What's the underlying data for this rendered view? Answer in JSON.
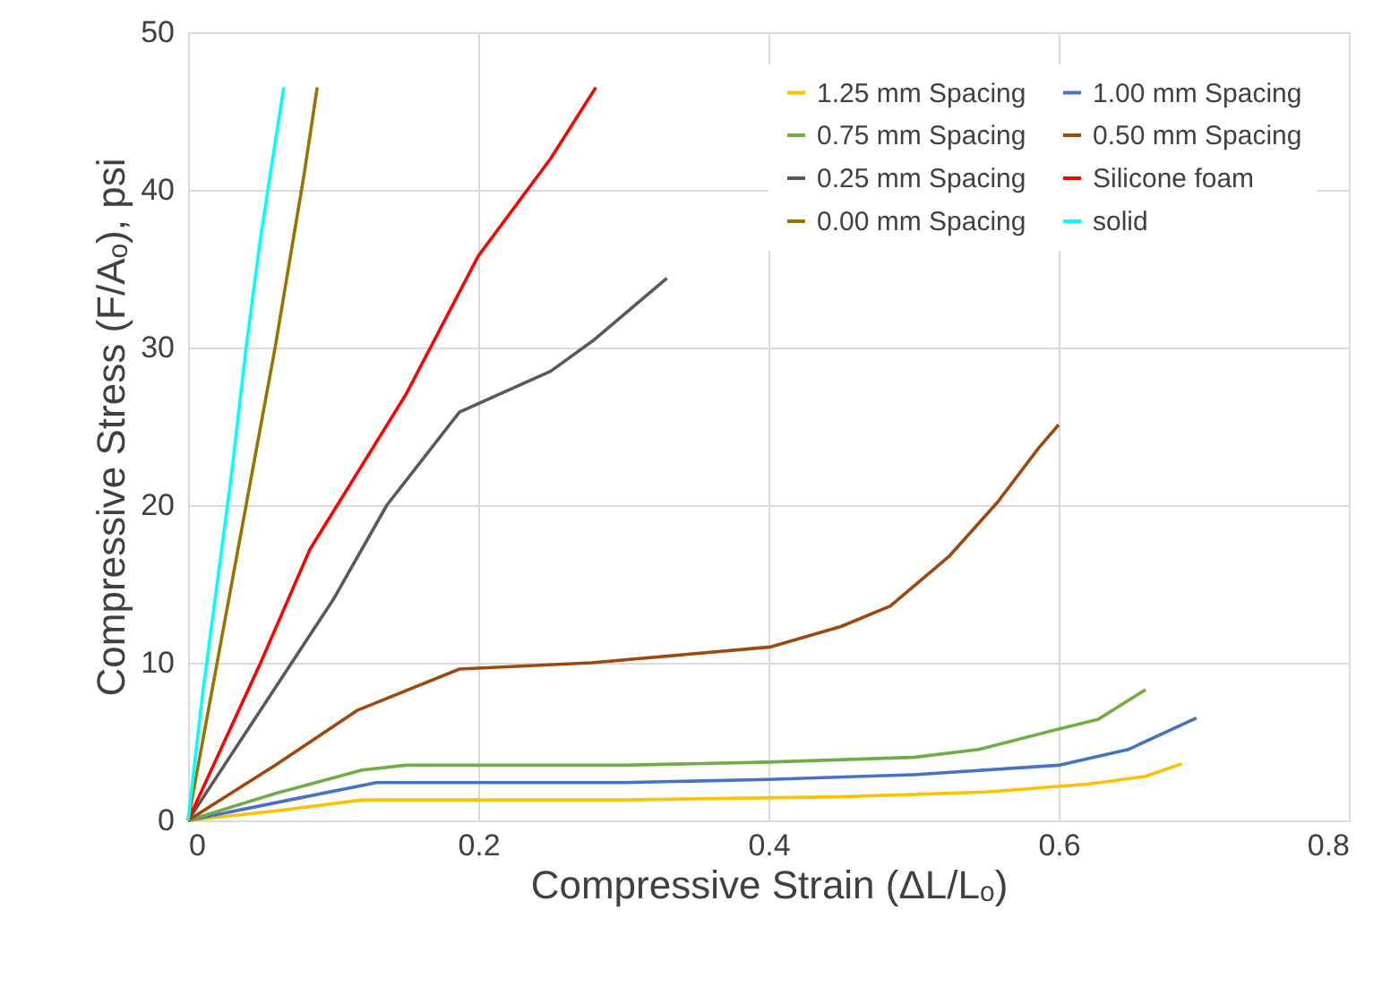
{
  "chart_data": {
    "type": "line",
    "xlabel": "Compressive Strain (ΔL/Lₒ)",
    "ylabel": "Compressive Stress (F/Aₒ), psi",
    "xlim": [
      0,
      0.8
    ],
    "xticks": [
      0,
      0.2,
      0.4,
      0.6,
      0.8
    ],
    "ylim": [
      0,
      50
    ],
    "yticks": [
      0,
      10,
      20,
      30,
      40,
      50
    ],
    "grid": true,
    "legend": "top right",
    "line_style": "solid",
    "marker": "none",
    "series": [
      {
        "name": "1.25 mm Spacing",
        "color": "#ffc000",
        "x": [
          0,
          0.06,
          0.12,
          0.3,
          0.45,
          0.55,
          0.62,
          0.66,
          0.685
        ],
        "values": [
          0,
          0.6,
          1.3,
          1.3,
          1.5,
          1.8,
          2.3,
          2.8,
          3.6
        ]
      },
      {
        "name": "1.00 mm Spacing",
        "color": "#4472c4",
        "x": [
          0,
          0.07,
          0.13,
          0.3,
          0.4,
          0.5,
          0.6,
          0.648,
          0.695
        ],
        "values": [
          0,
          1.3,
          2.4,
          2.4,
          2.6,
          2.9,
          3.5,
          4.5,
          6.5
        ]
      },
      {
        "name": "0.75 mm Spacing",
        "color": "#70ad47",
        "x": [
          0,
          0.06,
          0.12,
          0.15,
          0.3,
          0.4,
          0.5,
          0.545,
          0.6,
          0.627,
          0.66
        ],
        "values": [
          0,
          1.7,
          3.2,
          3.5,
          3.5,
          3.7,
          4.0,
          4.5,
          5.8,
          6.4,
          8.3
        ]
      },
      {
        "name": "0.50 mm Spacing",
        "color": "#9e480e",
        "x": [
          0,
          0.06,
          0.117,
          0.187,
          0.278,
          0.401,
          0.45,
          0.484,
          0.525,
          0.558,
          0.586,
          0.6
        ],
        "values": [
          0,
          3.5,
          7.0,
          9.6,
          10.0,
          11.0,
          12.3,
          13.6,
          16.8,
          20.2,
          23.6,
          25.1
        ]
      },
      {
        "name": "0.25 mm Spacing",
        "color": "#595959",
        "x": [
          0,
          0.05,
          0.1,
          0.137,
          0.187,
          0.25,
          0.28,
          0.33
        ],
        "values": [
          0,
          7,
          14,
          20,
          25.9,
          28.5,
          30.5,
          34.4
        ]
      },
      {
        "name": "Silicone foam",
        "color": "#ff0000",
        "x": [
          0,
          0.05,
          0.084,
          0.15,
          0.2,
          0.25,
          0.281
        ],
        "values": [
          0,
          10,
          17.2,
          27,
          35.8,
          42,
          46.5
        ]
      },
      {
        "name": "0.00 mm Spacing",
        "color": "#997300",
        "x": [
          0,
          0.02,
          0.04,
          0.06,
          0.08,
          0.089
        ],
        "values": [
          0,
          10,
          20,
          30,
          41,
          46.5
        ]
      },
      {
        "name": "solid",
        "color": "#00ffff",
        "x": [
          0,
          0.01,
          0.02,
          0.03,
          0.04,
          0.05,
          0.06,
          0.066
        ],
        "values": [
          0,
          8,
          15,
          22,
          30,
          37,
          43,
          46.5
        ]
      }
    ]
  }
}
